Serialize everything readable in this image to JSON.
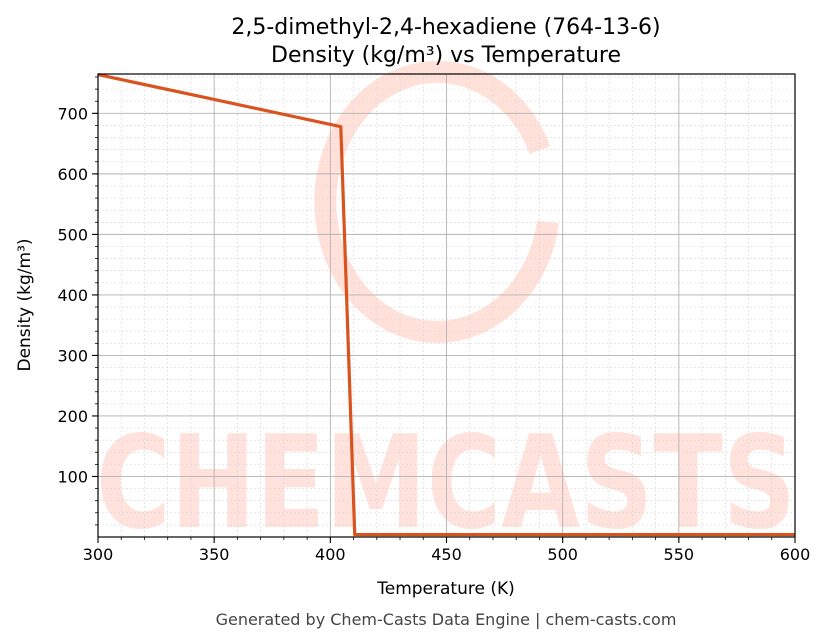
{
  "chart_data": {
    "type": "line",
    "title": "2,5-dimethyl-2,4-hexadiene (764-13-6)",
    "subtitle": "Density (kg/m³) vs Temperature",
    "xlabel": "Temperature (K)",
    "ylabel": "Density (kg/m³)",
    "xlim": [
      300,
      600
    ],
    "ylim": [
      0,
      765
    ],
    "x_ticks": [
      300,
      350,
      400,
      450,
      500,
      550,
      600
    ],
    "y_ticks": [
      100,
      200,
      300,
      400,
      500,
      600,
      700
    ],
    "grid": true,
    "series": [
      {
        "color": "#d9531e",
        "x": [
          300,
          350,
          404.5,
          410.5,
          450,
          500,
          550,
          600
        ],
        "y": [
          764,
          723,
          678,
          4,
          4,
          4,
          4,
          4
        ]
      }
    ]
  },
  "watermark": {
    "text": "CHEMCASTS",
    "color": "#ffd9cf"
  },
  "footer": "Generated by Chem-Casts Data Engine | chem-casts.com"
}
